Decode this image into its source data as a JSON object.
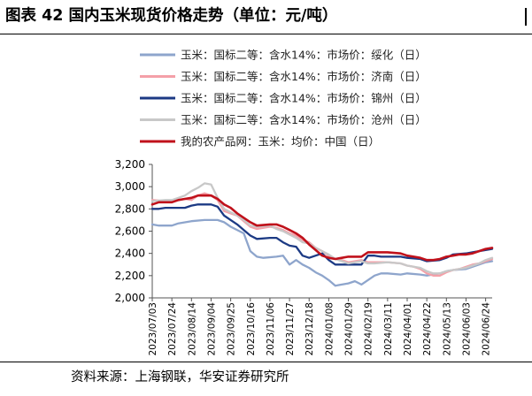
{
  "title": "图表 42 国内玉米现货价格走势（单位：元/吨）",
  "source": "资料来源：上海钢联，华安证券研究所",
  "chart_data": {
    "type": "line",
    "ylim": [
      2000,
      3200
    ],
    "yticks": [
      "2,000",
      "2,200",
      "2,400",
      "2,600",
      "2,800",
      "3,000",
      "3,200"
    ],
    "xlim": [
      "2023/07/03",
      "2024/07/01"
    ],
    "xticks": [
      "2023/07/03",
      "2023/07/24",
      "2023/08/14",
      "2023/09/04",
      "2023/09/25",
      "2023/10/16",
      "2023/11/06",
      "2023/11/27",
      "2023/12/18",
      "2024/01/08",
      "2024/01/29",
      "2024/02/19",
      "2024/03/11",
      "2024/04/01",
      "2024/04/22",
      "2024/05/13",
      "2024/06/03",
      "2024/06/24"
    ],
    "legend_position": "top-left",
    "series": [
      {
        "name": "玉米：国标二等：含水14%：市场价：绥化（日）",
        "color": "#8ea5cc",
        "points": [
          [
            "2023/07/03",
            2660
          ],
          [
            "2023/07/10",
            2650
          ],
          [
            "2023/07/24",
            2650
          ],
          [
            "2023/07/31",
            2670
          ],
          [
            "2023/08/14",
            2690
          ],
          [
            "2023/08/28",
            2700
          ],
          [
            "2023/09/11",
            2700
          ],
          [
            "2023/09/18",
            2680
          ],
          [
            "2023/09/25",
            2640
          ],
          [
            "2023/10/09",
            2580
          ],
          [
            "2023/10/16",
            2420
          ],
          [
            "2023/10/23",
            2370
          ],
          [
            "2023/10/30",
            2360
          ],
          [
            "2023/11/13",
            2370
          ],
          [
            "2023/11/20",
            2380
          ],
          [
            "2023/11/27",
            2300
          ],
          [
            "2023/12/04",
            2340
          ],
          [
            "2023/12/11",
            2300
          ],
          [
            "2023/12/18",
            2270
          ],
          [
            "2023/12/25",
            2230
          ],
          [
            "2024/01/01",
            2200
          ],
          [
            "2024/01/08",
            2160
          ],
          [
            "2024/01/15",
            2110
          ],
          [
            "2024/01/22",
            2120
          ],
          [
            "2024/01/29",
            2130
          ],
          [
            "2024/02/05",
            2150
          ],
          [
            "2024/02/12",
            2120
          ],
          [
            "2024/02/26",
            2200
          ],
          [
            "2024/03/04",
            2220
          ],
          [
            "2024/03/11",
            2220
          ],
          [
            "2024/03/25",
            2210
          ],
          [
            "2024/04/01",
            2220
          ],
          [
            "2024/04/15",
            2210
          ],
          [
            "2024/04/22",
            2200
          ],
          [
            "2024/05/06",
            2220
          ],
          [
            "2024/05/13",
            2240
          ],
          [
            "2024/05/20",
            2250
          ],
          [
            "2024/06/03",
            2260
          ],
          [
            "2024/06/10",
            2280
          ],
          [
            "2024/06/17",
            2300
          ],
          [
            "2024/06/24",
            2320
          ],
          [
            "2024/07/01",
            2330
          ]
        ]
      },
      {
        "name": "玉米：国标二等：含水14%：市场价：济南（日）",
        "color": "#f4a0a8",
        "points": [
          [
            "2023/07/03",
            2880
          ],
          [
            "2023/07/17",
            2870
          ],
          [
            "2023/07/24",
            2870
          ],
          [
            "2023/07/31",
            2880
          ],
          [
            "2023/08/07",
            2890
          ],
          [
            "2023/08/14",
            2880
          ],
          [
            "2023/08/21",
            2920
          ],
          [
            "2023/08/28",
            2940
          ],
          [
            "2023/09/04",
            2920
          ],
          [
            "2023/09/11",
            2880
          ],
          [
            "2023/09/18",
            2780
          ],
          [
            "2023/09/25",
            2760
          ],
          [
            "2023/10/02",
            2740
          ],
          [
            "2023/10/09",
            2690
          ],
          [
            "2023/10/16",
            2640
          ],
          [
            "2023/10/23",
            2620
          ],
          [
            "2023/11/06",
            2640
          ],
          [
            "2023/11/13",
            2630
          ],
          [
            "2023/11/20",
            2610
          ],
          [
            "2023/11/27",
            2580
          ],
          [
            "2023/12/04",
            2560
          ],
          [
            "2023/12/11",
            2520
          ],
          [
            "2023/12/18",
            2500
          ],
          [
            "2023/12/25",
            2450
          ],
          [
            "2024/01/01",
            2420
          ],
          [
            "2024/01/08",
            2380
          ],
          [
            "2024/01/15",
            2350
          ],
          [
            "2024/01/22",
            2340
          ],
          [
            "2024/01/29",
            2320
          ],
          [
            "2024/02/05",
            2330
          ],
          [
            "2024/02/12",
            2340
          ],
          [
            "2024/02/19",
            2320
          ],
          [
            "2024/02/26",
            2320
          ],
          [
            "2024/03/11",
            2320
          ],
          [
            "2024/03/25",
            2310
          ],
          [
            "2024/04/01",
            2290
          ],
          [
            "2024/04/08",
            2280
          ],
          [
            "2024/04/15",
            2260
          ],
          [
            "2024/04/22",
            2220
          ],
          [
            "2024/04/29",
            2200
          ],
          [
            "2024/05/06",
            2200
          ],
          [
            "2024/05/13",
            2230
          ],
          [
            "2024/05/20",
            2250
          ],
          [
            "2024/05/27",
            2260
          ],
          [
            "2024/06/03",
            2280
          ],
          [
            "2024/06/10",
            2300
          ],
          [
            "2024/06/17",
            2310
          ],
          [
            "2024/06/24",
            2330
          ],
          [
            "2024/07/01",
            2350
          ]
        ]
      },
      {
        "name": "玉米：国标二等：含水14%：市场价：锦州（日）",
        "color": "#1c3a84",
        "points": [
          [
            "2023/07/03",
            2800
          ],
          [
            "2023/07/10",
            2800
          ],
          [
            "2023/07/17",
            2810
          ],
          [
            "2023/08/07",
            2810
          ],
          [
            "2023/08/14",
            2830
          ],
          [
            "2023/08/21",
            2840
          ],
          [
            "2023/09/04",
            2840
          ],
          [
            "2023/09/11",
            2820
          ],
          [
            "2023/09/18",
            2740
          ],
          [
            "2023/09/25",
            2700
          ],
          [
            "2023/10/02",
            2660
          ],
          [
            "2023/10/09",
            2610
          ],
          [
            "2023/10/16",
            2560
          ],
          [
            "2023/10/23",
            2530
          ],
          [
            "2023/11/06",
            2540
          ],
          [
            "2023/11/13",
            2540
          ],
          [
            "2023/11/20",
            2500
          ],
          [
            "2023/11/27",
            2470
          ],
          [
            "2023/12/04",
            2460
          ],
          [
            "2023/12/11",
            2380
          ],
          [
            "2023/12/18",
            2360
          ],
          [
            "2023/12/25",
            2380
          ],
          [
            "2024/01/01",
            2400
          ],
          [
            "2024/01/08",
            2340
          ],
          [
            "2024/01/15",
            2300
          ],
          [
            "2024/02/12",
            2300
          ],
          [
            "2024/02/19",
            2380
          ],
          [
            "2024/02/26",
            2380
          ],
          [
            "2024/03/04",
            2370
          ],
          [
            "2024/03/25",
            2370
          ],
          [
            "2024/04/01",
            2360
          ],
          [
            "2024/04/15",
            2350
          ],
          [
            "2024/04/22",
            2330
          ],
          [
            "2024/05/06",
            2340
          ],
          [
            "2024/05/13",
            2360
          ],
          [
            "2024/05/20",
            2390
          ],
          [
            "2024/06/03",
            2400
          ],
          [
            "2024/06/10",
            2410
          ],
          [
            "2024/06/17",
            2420
          ],
          [
            "2024/06/24",
            2430
          ],
          [
            "2024/07/01",
            2440
          ]
        ]
      },
      {
        "name": "玉米：国标二等：含水14%：市场价：沧州（日）",
        "color": "#c8c8c8",
        "points": [
          [
            "2023/07/03",
            2870
          ],
          [
            "2023/07/17",
            2880
          ],
          [
            "2023/07/24",
            2880
          ],
          [
            "2023/07/31",
            2900
          ],
          [
            "2023/08/07",
            2920
          ],
          [
            "2023/08/14",
            2960
          ],
          [
            "2023/08/21",
            2990
          ],
          [
            "2023/08/28",
            3030
          ],
          [
            "2023/09/04",
            3020
          ],
          [
            "2023/09/11",
            2900
          ],
          [
            "2023/09/18",
            2800
          ],
          [
            "2023/09/25",
            2770
          ],
          [
            "2023/10/02",
            2740
          ],
          [
            "2023/10/09",
            2700
          ],
          [
            "2023/10/16",
            2650
          ],
          [
            "2023/10/23",
            2640
          ],
          [
            "2023/11/06",
            2650
          ],
          [
            "2023/11/13",
            2620
          ],
          [
            "2023/11/20",
            2600
          ],
          [
            "2023/11/27",
            2570
          ],
          [
            "2023/12/04",
            2540
          ],
          [
            "2023/12/11",
            2500
          ],
          [
            "2023/12/18",
            2490
          ],
          [
            "2023/12/25",
            2450
          ],
          [
            "2024/01/01",
            2420
          ],
          [
            "2024/01/08",
            2390
          ],
          [
            "2024/01/15",
            2350
          ],
          [
            "2024/01/22",
            2330
          ],
          [
            "2024/01/29",
            2310
          ],
          [
            "2024/02/05",
            2320
          ],
          [
            "2024/02/12",
            2330
          ],
          [
            "2024/02/19",
            2310
          ],
          [
            "2024/02/26",
            2310
          ],
          [
            "2024/03/11",
            2320
          ],
          [
            "2024/03/25",
            2310
          ],
          [
            "2024/04/01",
            2290
          ],
          [
            "2024/04/15",
            2270
          ],
          [
            "2024/04/22",
            2240
          ],
          [
            "2024/04/29",
            2220
          ],
          [
            "2024/05/06",
            2220
          ],
          [
            "2024/05/13",
            2240
          ],
          [
            "2024/05/20",
            2250
          ],
          [
            "2024/05/27",
            2260
          ],
          [
            "2024/06/03",
            2270
          ],
          [
            "2024/06/10",
            2290
          ],
          [
            "2024/06/17",
            2310
          ],
          [
            "2024/06/24",
            2340
          ],
          [
            "2024/07/01",
            2360
          ]
        ]
      },
      {
        "name": "我的农产品网：玉米：均价：中国（日）",
        "color": "#c0111b",
        "points": [
          [
            "2023/07/03",
            2840
          ],
          [
            "2023/07/10",
            2860
          ],
          [
            "2023/07/24",
            2860
          ],
          [
            "2023/07/31",
            2880
          ],
          [
            "2023/08/07",
            2890
          ],
          [
            "2023/08/14",
            2900
          ],
          [
            "2023/08/21",
            2920
          ],
          [
            "2023/08/28",
            2920
          ],
          [
            "2023/09/04",
            2920
          ],
          [
            "2023/09/11",
            2890
          ],
          [
            "2023/09/18",
            2840
          ],
          [
            "2023/09/25",
            2810
          ],
          [
            "2023/10/02",
            2760
          ],
          [
            "2023/10/09",
            2720
          ],
          [
            "2023/10/16",
            2680
          ],
          [
            "2023/10/23",
            2650
          ],
          [
            "2023/11/06",
            2660
          ],
          [
            "2023/11/13",
            2660
          ],
          [
            "2023/11/20",
            2640
          ],
          [
            "2023/11/27",
            2610
          ],
          [
            "2023/12/04",
            2580
          ],
          [
            "2023/12/11",
            2540
          ],
          [
            "2023/12/18",
            2480
          ],
          [
            "2023/12/25",
            2430
          ],
          [
            "2024/01/01",
            2380
          ],
          [
            "2024/01/08",
            2360
          ],
          [
            "2024/01/15",
            2350
          ],
          [
            "2024/01/22",
            2360
          ],
          [
            "2024/01/29",
            2370
          ],
          [
            "2024/02/05",
            2370
          ],
          [
            "2024/02/12",
            2370
          ],
          [
            "2024/02/19",
            2410
          ],
          [
            "2024/02/26",
            2410
          ],
          [
            "2024/03/11",
            2410
          ],
          [
            "2024/03/25",
            2400
          ],
          [
            "2024/04/01",
            2380
          ],
          [
            "2024/04/08",
            2370
          ],
          [
            "2024/04/15",
            2360
          ],
          [
            "2024/04/22",
            2340
          ],
          [
            "2024/04/29",
            2340
          ],
          [
            "2024/05/06",
            2350
          ],
          [
            "2024/05/13",
            2370
          ],
          [
            "2024/05/20",
            2380
          ],
          [
            "2024/05/27",
            2390
          ],
          [
            "2024/06/03",
            2390
          ],
          [
            "2024/06/10",
            2400
          ],
          [
            "2024/06/17",
            2420
          ],
          [
            "2024/06/24",
            2440
          ],
          [
            "2024/07/01",
            2450
          ]
        ]
      }
    ]
  }
}
